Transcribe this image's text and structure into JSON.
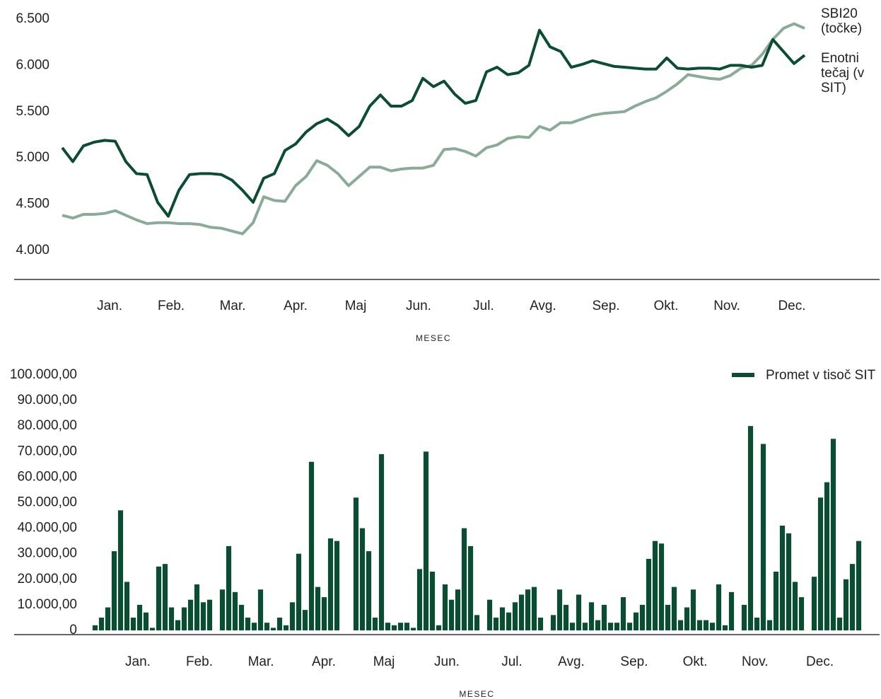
{
  "chart_data": [
    {
      "type": "line",
      "x_label": "MESEC",
      "xlim": [
        0,
        70
      ],
      "xticks": [
        {
          "value": 4.47,
          "label": "Jan."
        },
        {
          "value": 10.27,
          "label": "Feb."
        },
        {
          "value": 16.07,
          "label": "Mar."
        },
        {
          "value": 22,
          "label": "Apr."
        },
        {
          "value": 27.67,
          "label": "Maj"
        },
        {
          "value": 33.6,
          "label": "Jun."
        },
        {
          "value": 39.73,
          "label": "Jul."
        },
        {
          "value": 45.33,
          "label": "Avg."
        },
        {
          "value": 51.27,
          "label": "Sep."
        },
        {
          "value": 56.93,
          "label": "Okt."
        },
        {
          "value": 62.67,
          "label": "Nov."
        },
        {
          "value": 68.8,
          "label": "Dec."
        }
      ],
      "ylim": [
        4000,
        6500
      ],
      "yticks": [
        {
          "value": 4000,
          "label": "4.000"
        },
        {
          "value": 4500,
          "label": "4.500"
        },
        {
          "value": 5000,
          "label": "5.000"
        },
        {
          "value": 5500,
          "label": "5.500"
        },
        {
          "value": 6000,
          "label": "6.000"
        },
        {
          "value": 6500,
          "label": "6.500"
        }
      ],
      "series": [
        {
          "name": "SBI20 (točke)",
          "color": "#8aab98",
          "values": [
            4380,
            4350,
            4390,
            4390,
            4400,
            4430,
            4380,
            4330,
            4290,
            4300,
            4300,
            4290,
            4290,
            4280,
            4250,
            4240,
            4210,
            4180,
            4300,
            4580,
            4540,
            4530,
            4700,
            4800,
            4970,
            4920,
            4830,
            4700,
            4800,
            4900,
            4900,
            4860,
            4880,
            4890,
            4890,
            4920,
            5090,
            5100,
            5070,
            5020,
            5110,
            5140,
            5210,
            5230,
            5220,
            5340,
            5300,
            5380,
            5380,
            5420,
            5460,
            5480,
            5490,
            5500,
            5560,
            5610,
            5650,
            5720,
            5800,
            5900,
            5880,
            5860,
            5850,
            5890,
            5970,
            6000,
            6120,
            6280,
            6400,
            6450,
            6400
          ]
        },
        {
          "name": "Enotni tečaj (v SIT)",
          "color": "#0b4d33",
          "values": [
            5110,
            4960,
            5130,
            5170,
            5190,
            5180,
            4960,
            4830,
            4820,
            4520,
            4370,
            4650,
            4820,
            4830,
            4830,
            4820,
            4760,
            4650,
            4520,
            4780,
            4830,
            5080,
            5150,
            5280,
            5370,
            5420,
            5350,
            5240,
            5340,
            5560,
            5680,
            5560,
            5560,
            5620,
            5860,
            5770,
            5830,
            5690,
            5590,
            5620,
            5930,
            5980,
            5900,
            5920,
            6000,
            6380,
            6200,
            6150,
            5980,
            6010,
            6050,
            6020,
            5990,
            5980,
            5970,
            5960,
            5960,
            6080,
            5970,
            5960,
            5970,
            5970,
            5960,
            6000,
            6000,
            5980,
            6000,
            6280,
            6150,
            6020,
            6110
          ]
        }
      ]
    },
    {
      "type": "bar",
      "x_label": "MESEC",
      "xlim": [
        0,
        121
      ],
      "xticks": [
        {
          "value": 7.22,
          "label": "Jan."
        },
        {
          "value": 16.89,
          "label": "Feb."
        },
        {
          "value": 26.56,
          "label": "Mar."
        },
        {
          "value": 36.44,
          "label": "Apr."
        },
        {
          "value": 45.89,
          "label": "Maj"
        },
        {
          "value": 55.78,
          "label": "Jun."
        },
        {
          "value": 66,
          "label": "Jul."
        },
        {
          "value": 75.33,
          "label": "Avg."
        },
        {
          "value": 85.22,
          "label": "Sep."
        },
        {
          "value": 94.78,
          "label": "Okt."
        },
        {
          "value": 104.2,
          "label": "Nov."
        },
        {
          "value": 114.4,
          "label": "Dec."
        }
      ],
      "ylim": [
        0,
        100000
      ],
      "yticks": [
        0,
        {
          "value": 10000,
          "label": "10.000,00"
        },
        {
          "value": 20000,
          "label": "20.000,00"
        },
        {
          "value": 30000,
          "label": "30.000,00"
        },
        {
          "value": 40000,
          "label": "40.000,00"
        },
        {
          "value": 50000,
          "label": "50.000,00"
        },
        {
          "value": 60000,
          "label": "60.000,00"
        },
        {
          "value": 70000,
          "label": "70.000,00"
        },
        {
          "value": 80000,
          "label": "80.000,00"
        },
        {
          "value": 90000,
          "label": "90.000,00"
        },
        {
          "value": 100000,
          "label": "100.000,00"
        }
      ],
      "legend": "upper right",
      "series": [
        {
          "name": "Promet v tisoč SIT",
          "color": "#0b4d33",
          "values": [
            2000,
            5000,
            9000,
            31000,
            47000,
            19000,
            5000,
            10000,
            7000,
            1000,
            25000,
            26000,
            9000,
            4000,
            9000,
            12000,
            18000,
            11000,
            12000,
            0,
            16000,
            33000,
            15000,
            10000,
            5000,
            3000,
            16000,
            3000,
            1000,
            5000,
            2000,
            11000,
            30000,
            8000,
            66000,
            17000,
            13000,
            36000,
            35000,
            0,
            0,
            52000,
            40000,
            31000,
            5000,
            69000,
            3000,
            2000,
            3000,
            3000,
            1000,
            24000,
            70000,
            23000,
            2000,
            18000,
            12000,
            16000,
            40000,
            33000,
            6000,
            0,
            12000,
            5000,
            9000,
            7000,
            11000,
            14000,
            16000,
            17000,
            5000,
            0,
            6000,
            16000,
            10000,
            3000,
            14000,
            3000,
            11000,
            4000,
            10000,
            3000,
            3000,
            13000,
            3000,
            7000,
            10000,
            28000,
            35000,
            34000,
            10000,
            17000,
            4000,
            9000,
            16000,
            4000,
            4000,
            3000,
            18000,
            2000,
            15000,
            0,
            10000,
            80000,
            5000,
            73000,
            4000,
            23000,
            41000,
            38000,
            19000,
            13000,
            0,
            21000,
            52000,
            58000,
            75000,
            5000,
            20000,
            26000,
            35000
          ]
        }
      ]
    }
  ]
}
